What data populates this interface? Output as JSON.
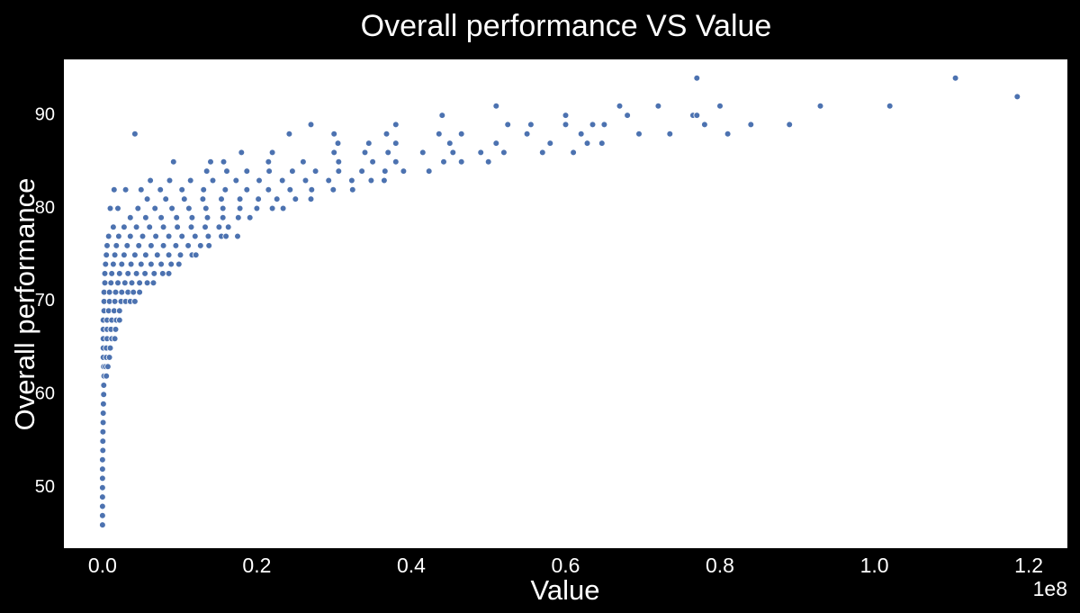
{
  "chart_data": {
    "type": "scatter",
    "title": "Overall performance VS Value",
    "xlabel": "Value",
    "ylabel": "Overall performance",
    "x_offset_label": "1e8",
    "x_scale_multiplier": 100000000,
    "xlim": [
      -5000000,
      125000000
    ],
    "ylim": [
      43.5,
      96
    ],
    "x_ticks": [
      0,
      20000000,
      40000000,
      60000000,
      80000000,
      100000000,
      120000000
    ],
    "x_tick_labels": [
      "0.0",
      "0.2",
      "0.4",
      "0.6",
      "0.8",
      "1.0",
      "1.2"
    ],
    "y_ticks": [
      50,
      60,
      70,
      80,
      90
    ],
    "y_tick_labels": [
      "50",
      "60",
      "70",
      "80",
      "90"
    ],
    "grid": false,
    "plot_background": "#ffffff",
    "figure_background": "#000000",
    "marker_color": "#4c72b0",
    "marker_edge_color": "#ffffff",
    "points": [
      [
        0,
        46
      ],
      [
        0,
        47
      ],
      [
        0,
        48
      ],
      [
        0,
        49
      ],
      [
        0,
        50
      ],
      [
        0,
        51
      ],
      [
        0,
        52
      ],
      [
        0,
        53
      ],
      [
        50000,
        54
      ],
      [
        50000,
        55
      ],
      [
        60000,
        56
      ],
      [
        80000,
        57
      ],
      [
        100000,
        58
      ],
      [
        120000,
        59
      ],
      [
        150000,
        60
      ],
      [
        170000,
        61
      ],
      [
        200000,
        62
      ],
      [
        500000,
        62
      ],
      [
        150000,
        63
      ],
      [
        400000,
        63
      ],
      [
        700000,
        63
      ],
      [
        100000,
        64
      ],
      [
        500000,
        64
      ],
      [
        900000,
        64
      ],
      [
        100000,
        65
      ],
      [
        500000,
        65
      ],
      [
        1000000,
        65
      ],
      [
        100000,
        66
      ],
      [
        600000,
        66
      ],
      [
        1200000,
        66
      ],
      [
        1600000,
        66
      ],
      [
        100000,
        67
      ],
      [
        600000,
        67
      ],
      [
        1100000,
        67
      ],
      [
        1700000,
        67
      ],
      [
        100000,
        68
      ],
      [
        600000,
        68
      ],
      [
        1200000,
        68
      ],
      [
        1800000,
        68
      ],
      [
        2200000,
        68
      ],
      [
        200000,
        69
      ],
      [
        800000,
        69
      ],
      [
        1500000,
        69
      ],
      [
        2200000,
        69
      ],
      [
        200000,
        70
      ],
      [
        900000,
        70
      ],
      [
        1600000,
        70
      ],
      [
        2400000,
        70
      ],
      [
        3000000,
        70
      ],
      [
        3600000,
        70
      ],
      [
        4200000,
        70
      ],
      [
        200000,
        71
      ],
      [
        900000,
        71
      ],
      [
        1700000,
        71
      ],
      [
        2500000,
        71
      ],
      [
        3300000,
        71
      ],
      [
        4000000,
        71
      ],
      [
        4800000,
        71
      ],
      [
        300000,
        72
      ],
      [
        1100000,
        72
      ],
      [
        2000000,
        72
      ],
      [
        2900000,
        72
      ],
      [
        3800000,
        72
      ],
      [
        4800000,
        72
      ],
      [
        5800000,
        72
      ],
      [
        6600000,
        72
      ],
      [
        300000,
        73
      ],
      [
        1200000,
        73
      ],
      [
        2200000,
        73
      ],
      [
        3300000,
        73
      ],
      [
        4400000,
        73
      ],
      [
        5500000,
        73
      ],
      [
        6700000,
        73
      ],
      [
        7800000,
        73
      ],
      [
        8600000,
        73
      ],
      [
        400000,
        74
      ],
      [
        1400000,
        74
      ],
      [
        2500000,
        74
      ],
      [
        3700000,
        74
      ],
      [
        5000000,
        74
      ],
      [
        6300000,
        74
      ],
      [
        7600000,
        74
      ],
      [
        8900000,
        74
      ],
      [
        9900000,
        74
      ],
      [
        500000,
        75
      ],
      [
        1600000,
        75
      ],
      [
        2800000,
        75
      ],
      [
        4200000,
        75
      ],
      [
        5600000,
        75
      ],
      [
        7100000,
        75
      ],
      [
        8600000,
        75
      ],
      [
        10100000,
        75
      ],
      [
        11600000,
        75
      ],
      [
        12100000,
        75
      ],
      [
        600000,
        76
      ],
      [
        1800000,
        76
      ],
      [
        3200000,
        76
      ],
      [
        4700000,
        76
      ],
      [
        6300000,
        76
      ],
      [
        7900000,
        76
      ],
      [
        9500000,
        76
      ],
      [
        11100000,
        76
      ],
      [
        12700000,
        76
      ],
      [
        13800000,
        76
      ],
      [
        800000,
        77
      ],
      [
        2100000,
        77
      ],
      [
        3600000,
        77
      ],
      [
        5200000,
        77
      ],
      [
        6900000,
        77
      ],
      [
        8600000,
        77
      ],
      [
        10300000,
        77
      ],
      [
        12000000,
        77
      ],
      [
        13700000,
        77
      ],
      [
        15400000,
        77
      ],
      [
        16000000,
        77
      ],
      [
        17500000,
        77
      ],
      [
        1400000,
        78
      ],
      [
        2800000,
        78
      ],
      [
        4400000,
        78
      ],
      [
        6100000,
        78
      ],
      [
        7900000,
        78
      ],
      [
        9700000,
        78
      ],
      [
        11500000,
        78
      ],
      [
        13300000,
        78
      ],
      [
        15100000,
        78
      ],
      [
        16300000,
        78
      ],
      [
        3600000,
        79
      ],
      [
        5600000,
        79
      ],
      [
        7600000,
        79
      ],
      [
        9600000,
        79
      ],
      [
        11600000,
        79
      ],
      [
        13600000,
        79
      ],
      [
        15600000,
        79
      ],
      [
        17600000,
        79
      ],
      [
        19100000,
        79
      ],
      [
        1000000,
        80
      ],
      [
        2000000,
        80
      ],
      [
        4600000,
        80
      ],
      [
        6800000,
        80
      ],
      [
        9000000,
        80
      ],
      [
        11200000,
        80
      ],
      [
        13400000,
        80
      ],
      [
        15600000,
        80
      ],
      [
        17800000,
        80
      ],
      [
        20000000,
        80
      ],
      [
        22000000,
        80
      ],
      [
        23400000,
        80
      ],
      [
        5800000,
        81
      ],
      [
        8200000,
        81
      ],
      [
        10600000,
        81
      ],
      [
        13000000,
        81
      ],
      [
        15400000,
        81
      ],
      [
        17800000,
        81
      ],
      [
        20200000,
        81
      ],
      [
        22600000,
        81
      ],
      [
        25000000,
        81
      ],
      [
        27000000,
        81
      ],
      [
        1500000,
        82
      ],
      [
        3000000,
        82
      ],
      [
        5000000,
        82
      ],
      [
        7500000,
        82
      ],
      [
        10300000,
        82
      ],
      [
        13100000,
        82
      ],
      [
        15900000,
        82
      ],
      [
        18700000,
        82
      ],
      [
        21500000,
        82
      ],
      [
        24300000,
        82
      ],
      [
        27100000,
        82
      ],
      [
        29900000,
        82
      ],
      [
        32400000,
        82
      ],
      [
        6200000,
        83
      ],
      [
        8700000,
        83
      ],
      [
        11400000,
        83
      ],
      [
        14300000,
        83
      ],
      [
        17300000,
        83
      ],
      [
        20300000,
        83
      ],
      [
        23300000,
        83
      ],
      [
        26300000,
        83
      ],
      [
        29300000,
        83
      ],
      [
        32300000,
        83
      ],
      [
        34800000,
        83
      ],
      [
        36500000,
        83
      ],
      [
        13500000,
        84
      ],
      [
        16100000,
        84
      ],
      [
        18700000,
        84
      ],
      [
        21600000,
        84
      ],
      [
        24600000,
        84
      ],
      [
        27600000,
        84
      ],
      [
        30600000,
        84
      ],
      [
        33600000,
        84
      ],
      [
        36600000,
        84
      ],
      [
        39000000,
        84
      ],
      [
        42300000,
        84
      ],
      [
        9200000,
        85
      ],
      [
        14000000,
        85
      ],
      [
        15700000,
        85
      ],
      [
        21500000,
        85
      ],
      [
        26000000,
        85
      ],
      [
        30600000,
        85
      ],
      [
        35000000,
        85
      ],
      [
        38000000,
        85
      ],
      [
        44200000,
        85
      ],
      [
        46500000,
        85
      ],
      [
        50000000,
        85
      ],
      [
        18000000,
        86
      ],
      [
        22000000,
        86
      ],
      [
        30000000,
        86
      ],
      [
        34000000,
        86
      ],
      [
        37000000,
        86
      ],
      [
        41500000,
        86
      ],
      [
        45400000,
        86
      ],
      [
        49000000,
        86
      ],
      [
        52000000,
        86
      ],
      [
        57000000,
        86
      ],
      [
        61000000,
        86
      ],
      [
        30500000,
        87
      ],
      [
        34500000,
        87
      ],
      [
        38000000,
        87
      ],
      [
        45000000,
        87
      ],
      [
        51000000,
        87
      ],
      [
        58000000,
        87
      ],
      [
        62800000,
        87
      ],
      [
        64700000,
        87
      ],
      [
        4200000,
        88
      ],
      [
        24200000,
        88
      ],
      [
        30000000,
        88
      ],
      [
        36800000,
        88
      ],
      [
        43600000,
        88
      ],
      [
        46500000,
        88
      ],
      [
        55000000,
        88
      ],
      [
        62000000,
        88
      ],
      [
        69500000,
        88
      ],
      [
        73500000,
        88
      ],
      [
        81000000,
        88
      ],
      [
        27000000,
        89
      ],
      [
        38000000,
        89
      ],
      [
        52500000,
        89
      ],
      [
        55500000,
        89
      ],
      [
        60000000,
        89
      ],
      [
        63500000,
        89
      ],
      [
        65000000,
        89
      ],
      [
        78000000,
        89
      ],
      [
        84000000,
        89
      ],
      [
        89000000,
        89
      ],
      [
        44000000,
        90
      ],
      [
        60000000,
        90
      ],
      [
        68000000,
        90
      ],
      [
        76500000,
        90
      ],
      [
        77000000,
        90
      ],
      [
        51000000,
        91
      ],
      [
        67000000,
        91
      ],
      [
        72000000,
        91
      ],
      [
        80000000,
        91
      ],
      [
        93000000,
        91
      ],
      [
        102000000,
        91
      ],
      [
        118500000,
        92
      ],
      [
        77000000,
        94
      ],
      [
        110500000,
        94
      ]
    ]
  }
}
